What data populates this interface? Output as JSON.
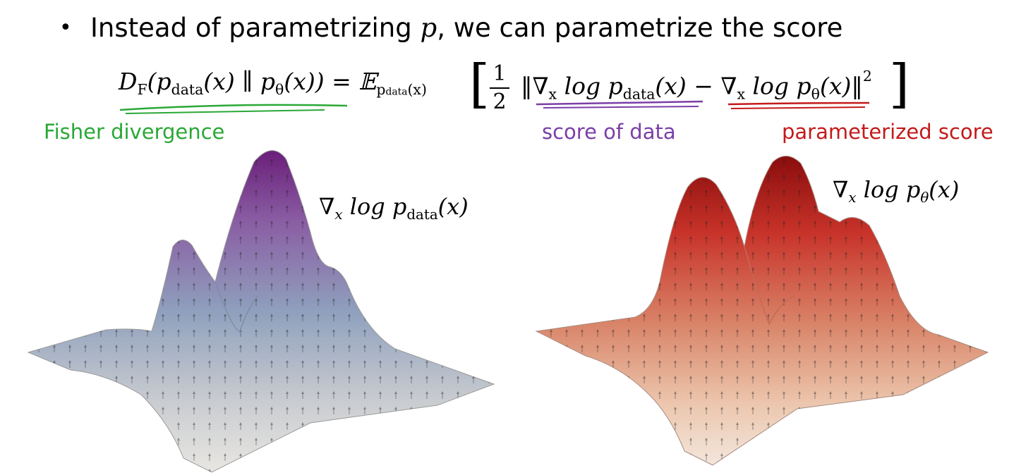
{
  "bullet": {
    "symbol": "•",
    "text_before": "Instead of parametrizing ",
    "variable": "p",
    "text_after": ", we can parametrize the score"
  },
  "formula": {
    "lhs_D": "D",
    "lhs_F": "F",
    "lhs_args": "(p",
    "data_sub": "data",
    "lhs_mid": "(x) ∥ p",
    "theta_sub": "θ",
    "lhs_end": "(x)) = 𝔼",
    "expect_sub": "p",
    "expect_sub_data": "data",
    "expect_sub_end": "(x)",
    "frac_num": "1",
    "frac_den": "2",
    "norm_open": "‖∇",
    "x_sub": "x",
    "log_p": " log p",
    "term1_end": "(x) − ∇",
    "log_p2": " log p",
    "term2_end": "(x)‖",
    "power": "2",
    "bracket_open": "[",
    "bracket_close": "]"
  },
  "labels": {
    "fisher": "Fisher divergence",
    "score_data": "score of data",
    "param_score": "parameterized score"
  },
  "surfaces": {
    "left_label_pre": "∇",
    "left_label_sub": "x",
    "left_label_mid": " log p",
    "left_label_data": "data",
    "left_label_end": "(x)",
    "right_label_pre": "∇",
    "right_label_sub": "x",
    "right_label_mid": " log p",
    "right_label_theta": "θ",
    "right_label_end": "(x)"
  },
  "colors": {
    "fisher": "#2aa836",
    "score_data": "#7b3fa8",
    "param_score": "#c41a1a"
  }
}
